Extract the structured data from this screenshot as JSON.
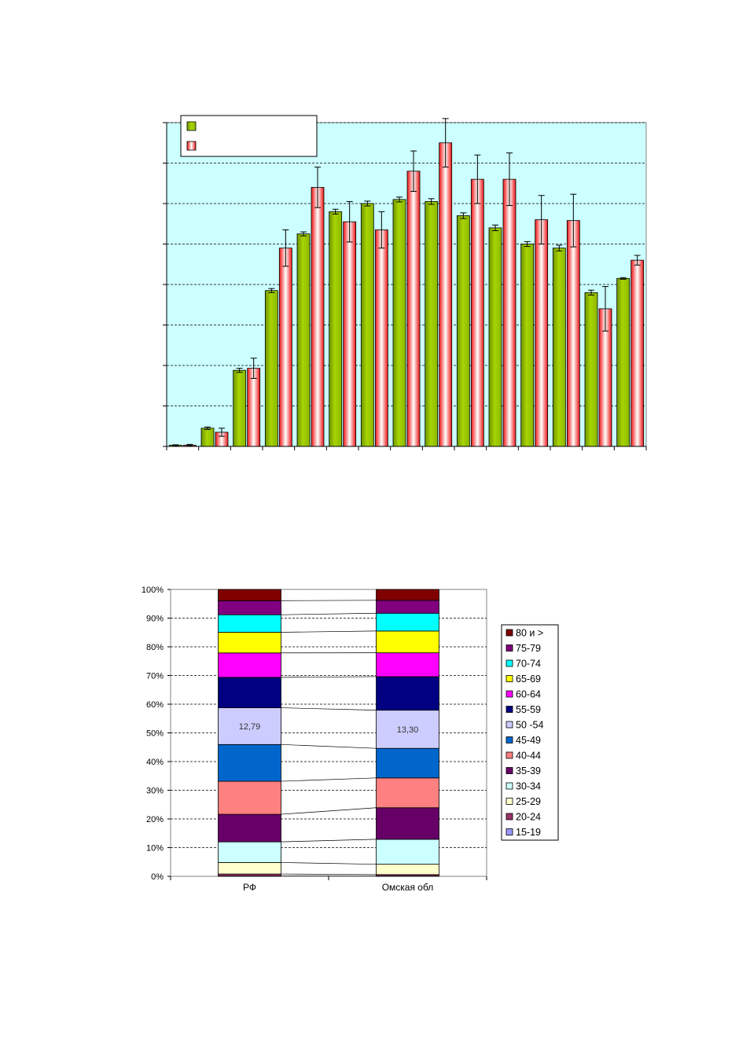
{
  "chart_data": [
    {
      "type": "bar",
      "categories": [
        "",
        "",
        "",
        "",
        "",
        "",
        "",
        "",
        "",
        "",
        "",
        "",
        "",
        "",
        ""
      ],
      "series": [
        {
          "color": "#99cc00",
          "values": [
            0.3,
            4.5,
            18.8,
            38.5,
            52.5,
            58.0,
            60.0,
            61.0,
            60.5,
            57.0,
            54.0,
            50.0,
            49.0,
            38.0,
            41.5
          ],
          "errors": [
            0.1,
            0.3,
            0.5,
            0.5,
            0.5,
            0.6,
            0.6,
            0.6,
            0.7,
            0.7,
            0.7,
            0.6,
            0.7,
            0.6,
            0.2
          ]
        },
        {
          "color": "#ff0000",
          "values": [
            0.3,
            3.5,
            19.3,
            49.0,
            64.0,
            55.5,
            53.5,
            68.0,
            75.0,
            66.0,
            66.0,
            56.0,
            55.8,
            34.0,
            46.0
          ],
          "errors": [
            0.2,
            1.0,
            2.5,
            4.5,
            5.0,
            5.0,
            4.5,
            5.0,
            6.0,
            6.0,
            6.5,
            6.0,
            6.5,
            5.5,
            1.2
          ]
        }
      ],
      "ylim": [
        0,
        80
      ],
      "grid": true,
      "legend": "top-left"
    },
    {
      "type": "bar",
      "stacked": true,
      "percent": true,
      "categories": [
        "РФ",
        "Омская обл"
      ],
      "yticks": [
        "0%",
        "10%",
        "20%",
        "30%",
        "40%",
        "50%",
        "60%",
        "70%",
        "80%",
        "90%",
        "100%"
      ],
      "legend": "right",
      "series": [
        {
          "name": "15-19",
          "color": "#9999ff",
          "values": [
            0.1,
            0.1
          ]
        },
        {
          "name": "20-24",
          "color": "#993366",
          "values": [
            0.7,
            0.5
          ]
        },
        {
          "name": "25-29",
          "color": "#ffffcc",
          "values": [
            4.0,
            3.6
          ]
        },
        {
          "name": "30-34",
          "color": "#ccffff",
          "values": [
            7.2,
            8.7
          ]
        },
        {
          "name": "35-39",
          "color": "#660066",
          "values": [
            9.6,
            11.0
          ]
        },
        {
          "name": "40-44",
          "color": "#ff8080",
          "values": [
            11.5,
            10.4
          ]
        },
        {
          "name": "45-49",
          "color": "#0066cc",
          "values": [
            12.8,
            10.3
          ]
        },
        {
          "name": "50 -54",
          "color": "#ccccff",
          "values": [
            12.79,
            13.3
          ],
          "labels": [
            "12,79",
            "13,30"
          ]
        },
        {
          "name": "55-59",
          "color": "#000080",
          "values": [
            10.6,
            11.7
          ]
        },
        {
          "name": "60-64",
          "color": "#ff00ff",
          "values": [
            8.5,
            8.3
          ]
        },
        {
          "name": "65-69",
          "color": "#ffff00",
          "values": [
            7.2,
            7.6
          ]
        },
        {
          "name": "70-74",
          "color": "#00ffff",
          "values": [
            6.1,
            6.2
          ]
        },
        {
          "name": "75-79",
          "color": "#800080",
          "values": [
            4.9,
            4.5
          ]
        },
        {
          "name": "80 и >",
          "color": "#800000",
          "values": [
            3.91,
            3.79
          ]
        }
      ]
    }
  ]
}
